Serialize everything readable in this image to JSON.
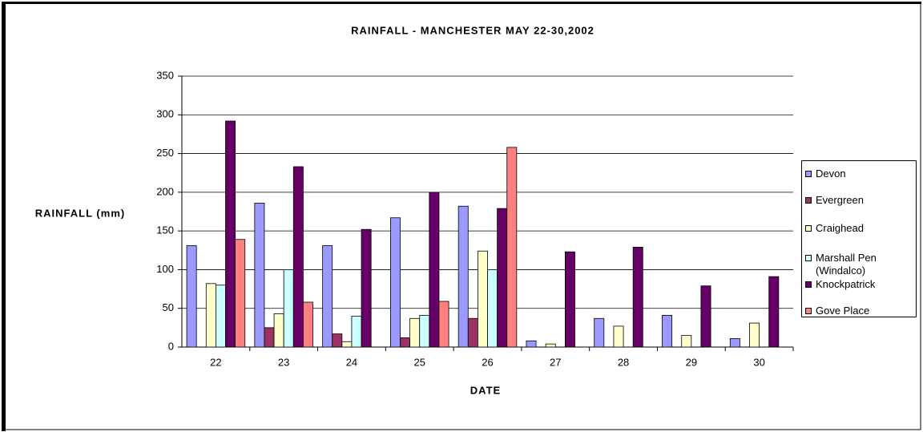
{
  "chart_data": {
    "type": "bar",
    "title": "RAINFALL - MANCHESTER MAY 22-30,2002",
    "x_label": "DATE",
    "y_label": "RAINFALL (mm)",
    "categories": [
      "22",
      "23",
      "24",
      "25",
      "26",
      "27",
      "28",
      "29",
      "30"
    ],
    "series": [
      {
        "name": "Devon",
        "color": "#9999ff",
        "values": [
          131,
          186,
          131,
          167,
          182,
          8,
          37,
          41,
          11
        ]
      },
      {
        "name": "Evergreen",
        "color": "#993366",
        "values": [
          0,
          25,
          17,
          12,
          37,
          0,
          0,
          0,
          0
        ]
      },
      {
        "name": "Craighead",
        "color": "#ffffcc",
        "values": [
          82,
          43,
          7,
          37,
          124,
          4,
          27,
          15,
          31
        ]
      },
      {
        "name": "Marshall Pen (Windalco)",
        "color": "#ccffff",
        "values": [
          80,
          100,
          40,
          41,
          100,
          0,
          0,
          0,
          0
        ]
      },
      {
        "name": "Knockpatrick",
        "color": "#660066",
        "values": [
          292,
          233,
          152,
          200,
          179,
          123,
          129,
          79,
          91
        ]
      },
      {
        "name": "Gove Place",
        "color": "#ff8080",
        "values": [
          139,
          58,
          0,
          59,
          258,
          0,
          0,
          0,
          0
        ]
      }
    ],
    "ylim": [
      0,
      350
    ],
    "yticks": [
      0,
      50,
      100,
      150,
      200,
      250,
      300,
      350
    ],
    "grid": true,
    "legend": "right"
  }
}
